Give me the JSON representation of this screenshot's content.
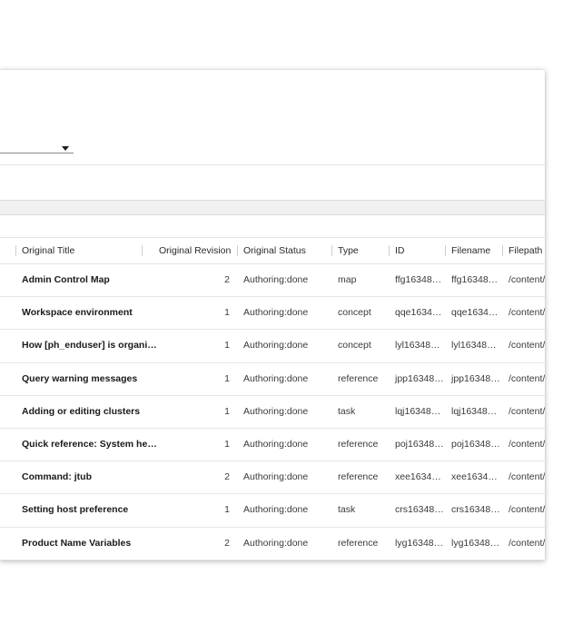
{
  "table": {
    "columns": [
      "Original Title",
      "Original Revision",
      "Original Status",
      "Type",
      "ID",
      "Filename",
      "Filepath"
    ],
    "rows": [
      {
        "title": "Admin Control Map",
        "revision": "2",
        "status": "Authoring:done",
        "type": "map",
        "id": "ffg16348…",
        "filename": "ffg16348…",
        "filepath": "/content/"
      },
      {
        "title": "Workspace environment",
        "revision": "1",
        "status": "Authoring:done",
        "type": "concept",
        "id": "qqe1634…",
        "filename": "qqe1634…",
        "filepath": "/content/"
      },
      {
        "title": "How [ph_enduser] is organi…",
        "revision": "1",
        "status": "Authoring:done",
        "type": "concept",
        "id": "lyl16348…",
        "filename": "lyl16348…",
        "filepath": "/content/"
      },
      {
        "title": "Query warning messages",
        "revision": "1",
        "status": "Authoring:done",
        "type": "reference",
        "id": "jpp16348…",
        "filename": "jpp16348…",
        "filepath": "/content/"
      },
      {
        "title": "Adding or editing clusters",
        "revision": "1",
        "status": "Authoring:done",
        "type": "task",
        "id": "lqj16348…",
        "filename": "lqj16348…",
        "filepath": "/content/"
      },
      {
        "title": "Quick reference: System he…",
        "revision": "1",
        "status": "Authoring:done",
        "type": "reference",
        "id": "poj16348…",
        "filename": "poj16348…",
        "filepath": "/content/"
      },
      {
        "title": "Command: jtub",
        "revision": "2",
        "status": "Authoring:done",
        "type": "reference",
        "id": "xee1634…",
        "filename": "xee1634…",
        "filepath": "/content/"
      },
      {
        "title": "Setting host preference",
        "revision": "1",
        "status": "Authoring:done",
        "type": "task",
        "id": "crs16348…",
        "filename": "crs16348…",
        "filepath": "/content/"
      },
      {
        "title": "Product Name Variables",
        "revision": "2",
        "status": "Authoring:done",
        "type": "reference",
        "id": "lyg16348…",
        "filename": "lyg16348…",
        "filepath": "/content/"
      }
    ]
  }
}
